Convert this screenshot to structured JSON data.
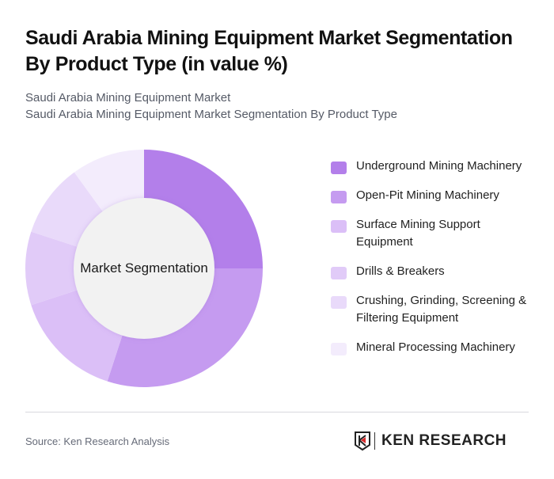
{
  "header": {
    "title": "Saudi Arabia Mining Equipment Market Segmentation By Product Type (in value %)",
    "subtitle_line1": "Saudi Arabia Mining Equipment Market",
    "subtitle_line2": "Saudi Arabia Mining Equipment Market Segmentation By Product Type"
  },
  "chart": {
    "center_label": "Market Segmentation"
  },
  "legend": [
    {
      "label": "Underground Mining Machinery",
      "color": "#b37fea"
    },
    {
      "label": "Open-Pit Mining Machinery",
      "color": "#c59bf0"
    },
    {
      "label": "Surface Mining Support Equipment",
      "color": "#dbbff7"
    },
    {
      "label": "Drills & Breakers",
      "color": "#e1cbf8"
    },
    {
      "label": "Crushing, Grinding, Screening & Filtering Equipment",
      "color": "#e9dafa"
    },
    {
      "label": "Mineral Processing Machinery",
      "color": "#f3ecfc"
    }
  ],
  "footer": {
    "source": "Source: Ken Research Analysis",
    "logo_text": "KEN RESEARCH"
  },
  "chart_data": {
    "type": "pie",
    "subtype": "donut",
    "title": "Saudi Arabia Mining Equipment Market Segmentation By Product Type (in value %)",
    "center_label": "Market Segmentation",
    "categories": [
      "Underground Mining Machinery",
      "Open-Pit Mining Machinery",
      "Surface Mining Support Equipment",
      "Drills & Breakers",
      "Crushing, Grinding, Screening & Filtering Equipment",
      "Mineral Processing Machinery"
    ],
    "values": [
      25,
      30,
      15,
      10,
      10,
      10
    ],
    "colors": [
      "#b37fea",
      "#c59bf0",
      "#dbbff7",
      "#e1cbf8",
      "#e9dafa",
      "#f3ecfc"
    ],
    "legend_position": "right",
    "start_angle": 0,
    "direction": "clockwise"
  }
}
